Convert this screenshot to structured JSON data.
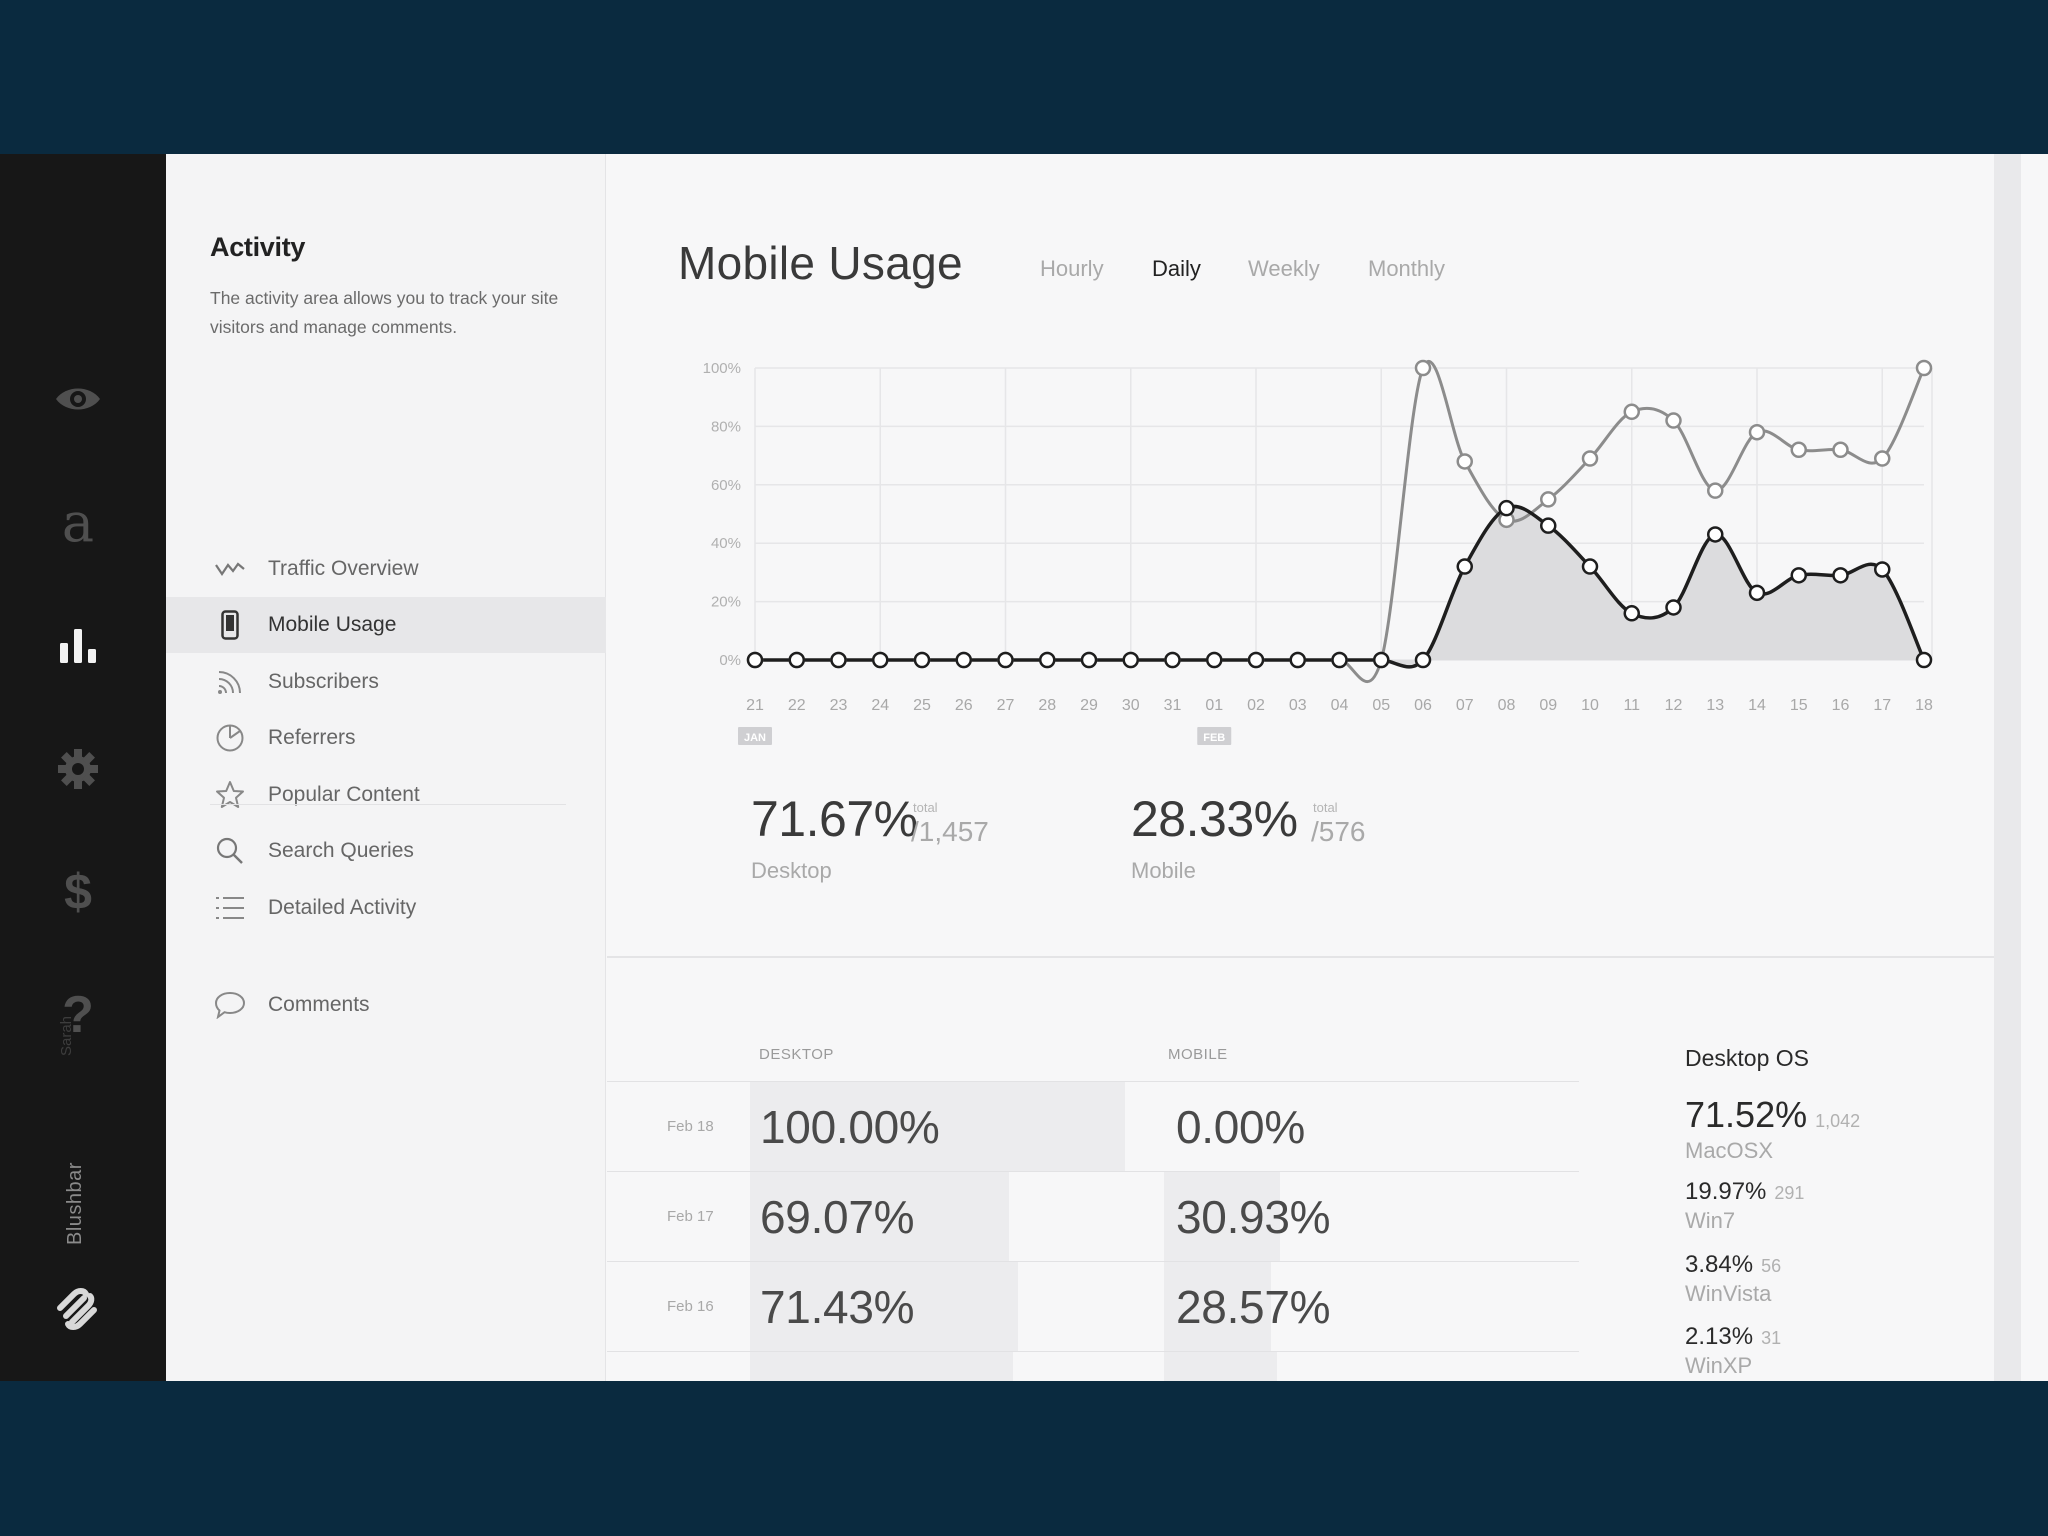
{
  "rail": {
    "user": "Sarah",
    "brand": "Blushbar"
  },
  "subnav": {
    "title": "Activity",
    "description": "The activity area allows you to track your site visitors and manage comments.",
    "items": [
      {
        "label": "Traffic Overview"
      },
      {
        "label": "Mobile Usage"
      },
      {
        "label": "Subscribers"
      },
      {
        "label": "Referrers"
      },
      {
        "label": "Popular Content"
      },
      {
        "label": "Search Queries"
      },
      {
        "label": "Detailed Activity"
      },
      {
        "label": "Comments"
      }
    ]
  },
  "main": {
    "title": "Mobile Usage",
    "tabs": [
      "Hourly",
      "Daily",
      "Weekly",
      "Monthly"
    ],
    "active_tab": "Daily"
  },
  "chart_data": {
    "type": "line",
    "x": [
      "21",
      "22",
      "23",
      "24",
      "25",
      "26",
      "27",
      "28",
      "29",
      "30",
      "31",
      "01",
      "02",
      "03",
      "04",
      "05",
      "06",
      "07",
      "08",
      "09",
      "10",
      "11",
      "12",
      "13",
      "14",
      "15",
      "16",
      "17",
      "18"
    ],
    "month_markers": [
      {
        "at": "21",
        "label": "JAN"
      },
      {
        "at": "01",
        "label": "FEB"
      }
    ],
    "y_ticks": [
      "100%",
      "80%",
      "60%",
      "40%",
      "20%",
      "0%"
    ],
    "ylim": [
      0,
      100
    ],
    "series": [
      {
        "values": [
          0,
          0,
          0,
          0,
          0,
          0,
          0,
          0,
          0,
          0,
          0,
          0,
          0,
          0,
          0,
          0,
          100,
          68,
          48,
          55,
          69,
          85,
          82,
          58,
          78,
          72,
          72,
          69,
          100
        ],
        "color": "#8c8c8c"
      },
      {
        "values": [
          0,
          0,
          0,
          0,
          0,
          0,
          0,
          0,
          0,
          0,
          0,
          0,
          0,
          0,
          0,
          0,
          0,
          32,
          52,
          46,
          32,
          16,
          18,
          43,
          23,
          29,
          29,
          31,
          0
        ],
        "color": "#1e1e1e",
        "filled": true
      }
    ],
    "grid": true
  },
  "stats": {
    "desktop": {
      "pct": "71.67%",
      "total_label": "total",
      "total": "/1,457",
      "label": "Desktop"
    },
    "mobile": {
      "pct": "28.33%",
      "total_label": "total",
      "total": "/576",
      "label": "Mobile"
    }
  },
  "table": {
    "headers": {
      "desktop": "DESKTOP",
      "mobile": "MOBILE"
    },
    "rows": [
      {
        "date": "Feb 18",
        "desktop": "100.00%",
        "mobile": "0.00%",
        "desktop_frac": 1.0,
        "mobile_frac": 0.0
      },
      {
        "date": "Feb 17",
        "desktop": "69.07%",
        "mobile": "30.93%",
        "desktop_frac": 0.6907,
        "mobile_frac": 0.3093
      },
      {
        "date": "Feb 16",
        "desktop": "71.43%",
        "mobile": "28.57%",
        "desktop_frac": 0.7143,
        "mobile_frac": 0.2857
      },
      {
        "date": "",
        "desktop": "",
        "mobile": "",
        "desktop_frac": 0.7,
        "mobile_frac": 0.3
      }
    ]
  },
  "desktop_os": {
    "title": "Desktop OS",
    "items": [
      {
        "pct": "71.52%",
        "count": "1,042",
        "name": "MacOSX"
      },
      {
        "pct": "19.97%",
        "count": "291",
        "name": "Win7"
      },
      {
        "pct": "3.84%",
        "count": "56",
        "name": "WinVista"
      },
      {
        "pct": "2.13%",
        "count": "31",
        "name": "WinXP"
      }
    ]
  }
}
